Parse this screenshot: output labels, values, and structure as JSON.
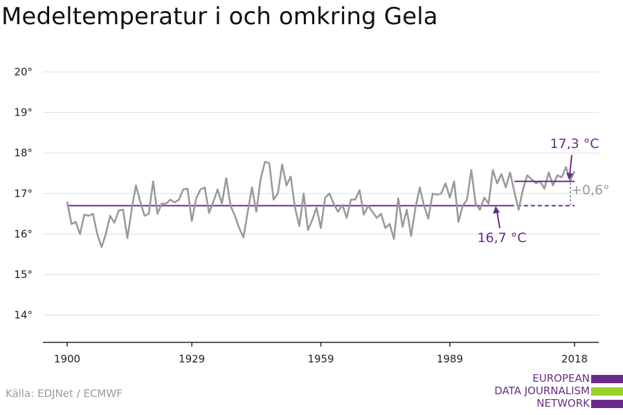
{
  "title": "Medeltemperatur i och omkring Gela",
  "source": "Källa: EDJNet / ECMWF",
  "logo": {
    "lines": [
      "EUROPEAN",
      "DATA JOURNALISM",
      "NETWORK"
    ],
    "colors": [
      "#6a2a8a",
      "#9bd12b",
      "#6a2a8a"
    ]
  },
  "colors": {
    "series": "#999999",
    "accent": "#6a2a8a",
    "grid": "#dddddd",
    "axis": "#222222",
    "diff": "#999999"
  },
  "chart_data": {
    "type": "line",
    "title": "Medeltemperatur i och omkring Gela",
    "xlabel": "",
    "ylabel": "",
    "xlim": [
      1900,
      2018
    ],
    "ylim": [
      13.5,
      20.3
    ],
    "grid": true,
    "y_ticks": [
      14,
      15,
      16,
      17,
      18,
      19,
      20
    ],
    "y_tick_labels": [
      "14°",
      "15°",
      "16°",
      "17°",
      "18°",
      "19°",
      "20°"
    ],
    "x_ticks": [
      1900,
      1929,
      1959,
      1989,
      2018
    ],
    "x_tick_labels": [
      "1900",
      "1929",
      "1959",
      "1989",
      "2018"
    ],
    "series": [
      {
        "x": [
          1900,
          1901,
          1902,
          1903,
          1904,
          1905,
          1906,
          1907,
          1908,
          1909,
          1910,
          1911,
          1912,
          1913,
          1914,
          1915,
          1916,
          1917,
          1918,
          1919,
          1920,
          1921,
          1922,
          1923,
          1924,
          1925,
          1926,
          1927,
          1928,
          1929,
          1930,
          1931,
          1932,
          1933,
          1934,
          1935,
          1936,
          1937,
          1938,
          1939,
          1940,
          1941,
          1942,
          1943,
          1944,
          1945,
          1946,
          1947,
          1948,
          1949,
          1950,
          1951,
          1952,
          1953,
          1954,
          1955,
          1956,
          1957,
          1958,
          1959,
          1960,
          1961,
          1962,
          1963,
          1964,
          1965,
          1966,
          1967,
          1968,
          1969,
          1970,
          1971,
          1972,
          1973,
          1974,
          1975,
          1976,
          1977,
          1978,
          1979,
          1980,
          1981,
          1982,
          1983,
          1984,
          1985,
          1986,
          1987,
          1988,
          1989,
          1990,
          1991,
          1992,
          1993,
          1994,
          1995,
          1996,
          1997,
          1998,
          1999,
          2000,
          2001,
          2002,
          2003,
          2004,
          2005,
          2006,
          2007,
          2008,
          2009,
          2010,
          2011,
          2012,
          2013,
          2014,
          2015,
          2016,
          2017,
          2018
        ],
        "values": [
          16.8,
          16.25,
          16.3,
          16.0,
          16.48,
          16.45,
          16.5,
          16.0,
          15.68,
          16.0,
          16.45,
          16.28,
          16.58,
          16.6,
          15.9,
          16.6,
          17.2,
          16.8,
          16.45,
          16.5,
          17.3,
          16.5,
          16.75,
          16.75,
          16.85,
          16.78,
          16.85,
          17.1,
          17.12,
          16.32,
          16.88,
          17.1,
          17.15,
          16.52,
          16.8,
          17.1,
          16.75,
          17.38,
          16.7,
          16.45,
          16.15,
          15.92,
          16.55,
          17.15,
          16.55,
          17.35,
          17.78,
          17.75,
          16.85,
          17.0,
          17.72,
          17.2,
          17.42,
          16.65,
          16.2,
          17.0,
          16.1,
          16.35,
          16.65,
          16.15,
          16.9,
          17.0,
          16.75,
          16.55,
          16.72,
          16.4,
          16.85,
          16.85,
          17.08,
          16.48,
          16.7,
          16.55,
          16.4,
          16.5,
          16.15,
          16.25,
          15.88,
          16.88,
          16.18,
          16.6,
          15.95,
          16.65,
          17.15,
          16.7,
          16.38,
          17.0,
          16.97,
          17.0,
          17.25,
          16.9,
          17.3,
          16.3,
          16.7,
          16.85,
          17.58,
          16.75,
          16.6,
          16.9,
          16.75,
          17.58,
          17.25,
          17.48,
          17.15,
          17.52,
          17.05,
          16.6,
          17.1,
          17.45,
          17.35,
          17.25,
          17.3,
          17.12,
          17.52,
          17.2,
          17.45,
          17.4,
          17.65,
          17.32,
          17.55
        ]
      }
    ],
    "annotations": {
      "baseline": {
        "value": 16.7,
        "from": 1900,
        "to": 2003,
        "dashed_to": 2018,
        "label": "16,7 °C"
      },
      "recent": {
        "value": 17.3,
        "from": 2004,
        "to": 2018,
        "label": "17,3 °C"
      },
      "difference": {
        "label": "+0,6°"
      }
    }
  }
}
